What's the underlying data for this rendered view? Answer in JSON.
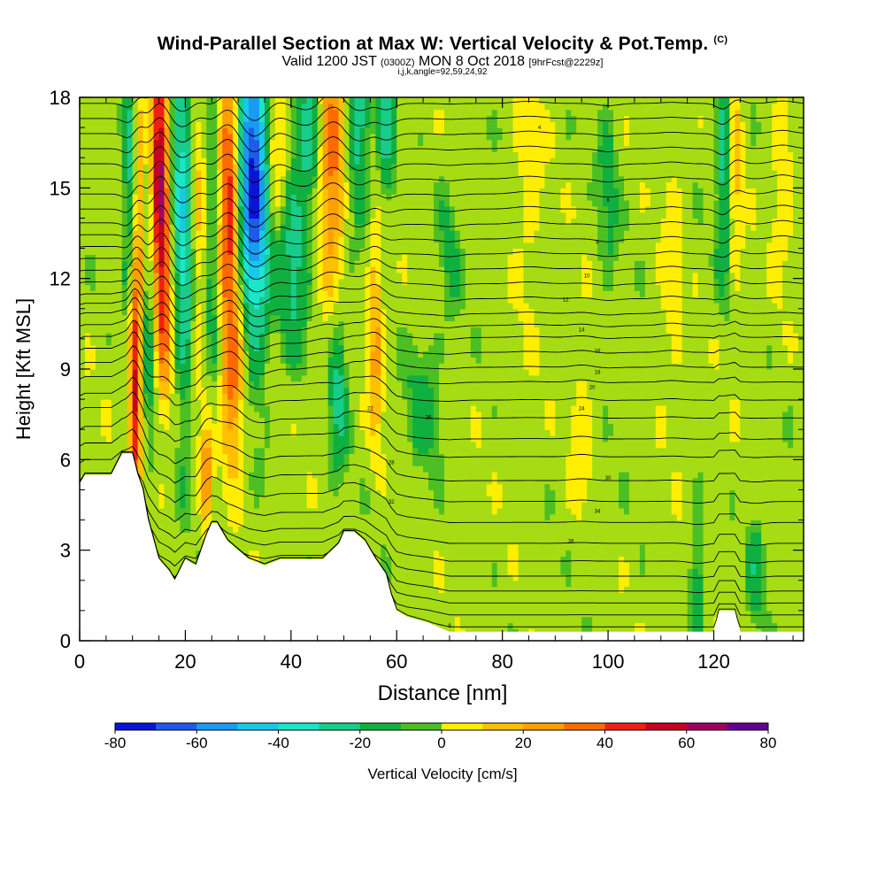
{
  "title": {
    "main": "Wind-Parallel Section at Max W: Vertical Velocity & Pot.Temp.",
    "copyright": "(C)",
    "valid_prefix": "Valid 1200 JST",
    "valid_utc": "(0300Z)",
    "valid_date": "MON 8 Oct 2018",
    "fcst": "[9hrFcst@2229z]",
    "ijk": "i,j,k,angle=92,59,24,92"
  },
  "colors": {
    "scale": [
      "#0a14d6",
      "#1f5be8",
      "#1a9af0",
      "#18c8ea",
      "#1ae6c8",
      "#18cc8a",
      "#10b040",
      "#4cbf24",
      "#a6dc14",
      "#ffee00",
      "#ffc000",
      "#ffa000",
      "#ff6a00",
      "#f02010",
      "#c80020",
      "#a00060",
      "#640090"
    ],
    "terrain": "#ffffff",
    "contour": "#000000"
  },
  "chart_data": {
    "type": "heatmap",
    "xlabel": "Distance [nm]",
    "ylabel": "Height [Kft MSL]",
    "xlim": [
      0,
      137
    ],
    "ylim": [
      0,
      18
    ],
    "x_ticks": [
      0,
      20,
      40,
      60,
      80,
      100,
      120
    ],
    "y_ticks": [
      0,
      3,
      6,
      9,
      12,
      15,
      18
    ],
    "x_tick_labels": [
      "0",
      "20",
      "40",
      "60",
      "80",
      "100",
      "120"
    ],
    "y_tick_labels": [
      "0",
      "3",
      "6",
      "9",
      "12",
      "15",
      "18"
    ],
    "colorbar": {
      "label": "Vertical Velocity [cm/s]",
      "ticks": [
        -80,
        -60,
        -40,
        -20,
        0,
        20,
        40,
        60,
        80
      ],
      "tick_labels": [
        "-80",
        "-60",
        "-40",
        "-20",
        "0",
        "20",
        "40",
        "60",
        "80"
      ],
      "min": -80,
      "max": 80,
      "step": 10
    },
    "terrain_profile": {
      "x": [
        0,
        1,
        6,
        8,
        10,
        11,
        12,
        13,
        15,
        17,
        18,
        20,
        22,
        24,
        25,
        26,
        28,
        30,
        32,
        35,
        38,
        42,
        46,
        49,
        50,
        52,
        54,
        56,
        58,
        59,
        60,
        62,
        66,
        70,
        72,
        80,
        100,
        110,
        120,
        121,
        124,
        125,
        137
      ],
      "h": [
        5.2,
        5.5,
        5.5,
        6.2,
        6.2,
        5.5,
        5.0,
        4.0,
        2.7,
        2.3,
        2.0,
        2.7,
        2.5,
        3.5,
        3.9,
        3.9,
        3.3,
        3.0,
        2.7,
        2.5,
        2.7,
        2.7,
        2.7,
        3.2,
        3.6,
        3.6,
        3.3,
        2.7,
        2.2,
        1.5,
        1.0,
        0.8,
        0.6,
        0.3,
        0.3,
        0.3,
        0.3,
        0.3,
        0.3,
        1.0,
        1.0,
        0.3,
        0.3
      ]
    },
    "w_features": [
      {
        "x": 10.5,
        "z": 8.5,
        "amp": 60,
        "sx": 0.8,
        "sz": 3.0
      },
      {
        "x": 9.5,
        "z": 15,
        "amp": -25,
        "sx": 0.9,
        "sz": 3.0
      },
      {
        "x": 11.5,
        "z": 15,
        "amp": 25,
        "sx": 0.8,
        "sz": 3.0
      },
      {
        "x": 13,
        "z": 13.5,
        "amp": -35,
        "sx": 1.0,
        "sz": 4.0
      },
      {
        "x": 15,
        "z": 15.5,
        "amp": 75,
        "sx": 1.6,
        "sz": 3.0
      },
      {
        "x": 16,
        "z": 10.5,
        "amp": 30,
        "sx": 1.0,
        "sz": 2.5
      },
      {
        "x": 17.5,
        "z": 16,
        "amp": -25,
        "sx": 1.2,
        "sz": 2.5
      },
      {
        "x": 20,
        "z": 14,
        "amp": -40,
        "sx": 1.4,
        "sz": 4.5
      },
      {
        "x": 22.5,
        "z": 14,
        "amp": 25,
        "sx": 1.5,
        "sz": 4.0
      },
      {
        "x": 25,
        "z": 14,
        "amp": -25,
        "sx": 1.3,
        "sz": 4.0
      },
      {
        "x": 24,
        "z": 5.5,
        "amp": 35,
        "sx": 0.8,
        "sz": 1.3
      },
      {
        "x": 28.5,
        "z": 15,
        "amp": 70,
        "sx": 1.6,
        "sz": 3.5
      },
      {
        "x": 29,
        "z": 8.5,
        "amp": 35,
        "sx": 1.5,
        "sz": 2.0
      },
      {
        "x": 31.5,
        "z": 15.5,
        "amp": -55,
        "sx": 2.2,
        "sz": 3.5
      },
      {
        "x": 34,
        "z": 15.5,
        "amp": -35,
        "sx": 1.8,
        "sz": 4.0
      },
      {
        "x": 37,
        "z": 16.5,
        "amp": 25,
        "sx": 1.5,
        "sz": 2.0
      },
      {
        "x": 40.5,
        "z": 13,
        "amp": -25,
        "sx": 2.0,
        "sz": 2.5
      },
      {
        "x": 43.5,
        "z": 17,
        "amp": -20,
        "sx": 1.5,
        "sz": 1.8
      },
      {
        "x": 47,
        "z": 16,
        "amp": 35,
        "sx": 1.2,
        "sz": 3.0
      },
      {
        "x": 49,
        "z": 16,
        "amp": 25,
        "sx": 1.0,
        "sz": 3.0
      },
      {
        "x": 49,
        "z": 8.5,
        "amp": -25,
        "sx": 1.2,
        "sz": 2.0
      },
      {
        "x": 53,
        "z": 17,
        "amp": -28,
        "sx": 1.4,
        "sz": 2.0
      },
      {
        "x": 56,
        "z": 10,
        "amp": 30,
        "sx": 1.0,
        "sz": 2.5
      },
      {
        "x": 58,
        "z": 17,
        "amp": -25,
        "sx": 1.2,
        "sz": 2.0
      },
      {
        "x": 65,
        "z": 8,
        "amp": -12,
        "sx": 2.5,
        "sz": 2.0
      },
      {
        "x": 70,
        "z": 13,
        "amp": -10,
        "sx": 1.5,
        "sz": 2.0
      },
      {
        "x": 85,
        "z": 15,
        "amp": 10,
        "sx": 2.0,
        "sz": 3.0
      },
      {
        "x": 95,
        "z": 7,
        "amp": 12,
        "sx": 1.5,
        "sz": 2.0
      },
      {
        "x": 100,
        "z": 15,
        "amp": -12,
        "sx": 1.5,
        "sz": 2.5
      },
      {
        "x": 112,
        "z": 12,
        "amp": 10,
        "sx": 1.5,
        "sz": 3.0
      },
      {
        "x": 117,
        "z": 2,
        "amp": -18,
        "sx": 1.2,
        "sz": 1.5
      },
      {
        "x": 122,
        "z": 16,
        "amp": -28,
        "sx": 1.0,
        "sz": 3.0
      },
      {
        "x": 124,
        "z": 16,
        "amp": 20,
        "sx": 1.0,
        "sz": 3.0
      },
      {
        "x": 128,
        "z": 2.5,
        "amp": -15,
        "sx": 1.2,
        "sz": 1.5
      },
      {
        "x": 133,
        "z": 15,
        "amp": 15,
        "sx": 1.5,
        "sz": 2.0
      }
    ],
    "isentrope_levels": [
      0.3,
      0.7,
      1.1,
      1.5,
      2.0,
      2.5,
      3.1,
      3.8,
      4.5,
      5.2,
      6.0,
      6.6,
      7.3,
      7.9,
      8.5,
      9.0,
      9.5,
      10.0,
      10.4,
      10.8,
      11.3,
      11.8,
      12.3,
      12.8,
      13.3,
      13.8,
      14.3,
      14.8,
      15.3,
      15.8,
      16.3,
      16.8,
      17.3,
      17.8
    ],
    "contour_labels": [
      {
        "x": 70,
        "z": 0.5,
        "text": "8"
      },
      {
        "x": 93,
        "z": 3.3,
        "text": "36"
      },
      {
        "x": 98,
        "z": 4.3,
        "text": "34"
      },
      {
        "x": 59,
        "z": 4.6,
        "text": "32"
      },
      {
        "x": 100,
        "z": 5.4,
        "text": "30"
      },
      {
        "x": 59,
        "z": 5.9,
        "text": "28"
      },
      {
        "x": 66,
        "z": 7.4,
        "text": "26"
      },
      {
        "x": 95,
        "z": 7.7,
        "text": "24"
      },
      {
        "x": 55,
        "z": 7.7,
        "text": "22"
      },
      {
        "x": 97,
        "z": 8.4,
        "text": "20"
      },
      {
        "x": 98,
        "z": 8.9,
        "text": "18"
      },
      {
        "x": 98,
        "z": 9.6,
        "text": "16"
      },
      {
        "x": 95,
        "z": 10.3,
        "text": "14"
      },
      {
        "x": 92,
        "z": 11.3,
        "text": "12"
      },
      {
        "x": 96,
        "z": 12.1,
        "text": "10"
      },
      {
        "x": 98,
        "z": 13.2,
        "text": "8"
      },
      {
        "x": 100,
        "z": 14.6,
        "text": "6"
      },
      {
        "x": 87,
        "z": 17.0,
        "text": "4"
      }
    ]
  }
}
